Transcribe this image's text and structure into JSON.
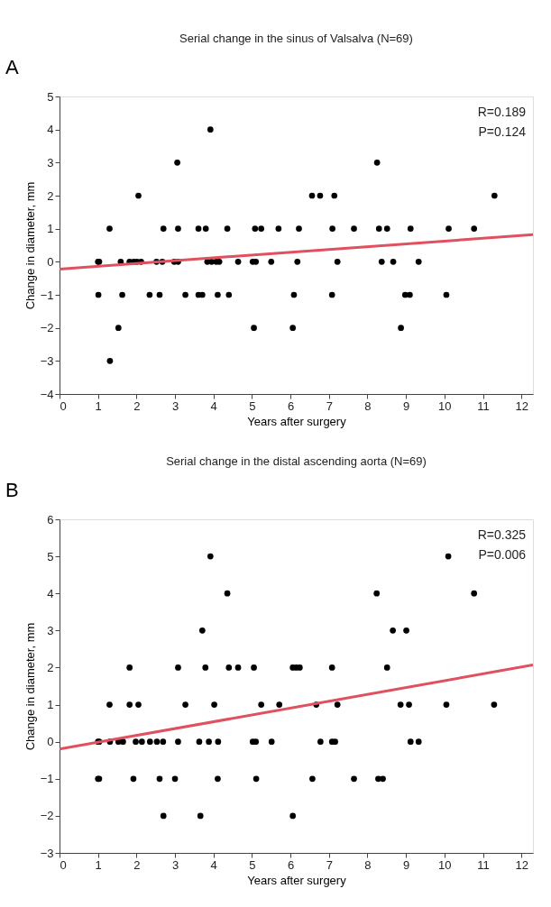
{
  "chart_data": [
    {
      "type": "scatter",
      "title": "Serial change in the sinus of Valsalva (N=69)",
      "xlabel": "Years after surgery",
      "ylabel": "Change in diameter, mm",
      "annotations": [
        "A",
        "R=0.189",
        "P=0.124"
      ],
      "xlim": [
        0,
        12.3
      ],
      "ylim": [
        -4,
        5
      ],
      "xticks": [
        0,
        1,
        2,
        3,
        4,
        5,
        6,
        7,
        8,
        9,
        10,
        11,
        12
      ],
      "yticks": [
        -4,
        -3,
        -2,
        -1,
        0,
        1,
        2,
        3,
        4,
        5
      ],
      "grid": false,
      "series": [
        {
          "marker": "circle",
          "color": "#000000",
          "x": [
            1.0,
            1.03,
            1.59,
            1.82,
            1.93,
            2.01,
            2.12,
            2.52,
            2.67,
            2.98,
            3.08,
            3.84,
            3.95,
            4.07,
            4.15,
            4.64,
            5.02,
            5.1,
            5.5,
            6.18,
            7.22,
            8.37,
            8.67,
            9.33,
            1.3,
            2.7,
            3.08,
            3.61,
            3.8,
            4.36,
            5.08,
            5.24,
            5.69,
            6.22,
            7.09,
            7.65,
            8.3,
            8.51,
            9.12,
            10.11,
            10.77,
            2.05,
            6.56,
            6.77,
            7.14,
            11.3,
            3.06,
            8.25,
            3.92,
            1.01,
            1.63,
            2.34,
            2.6,
            3.27,
            3.61,
            3.71,
            4.11,
            4.4,
            6.09,
            7.08,
            8.98,
            9.1,
            10.05,
            1.53,
            5.05,
            6.06,
            8.87,
            1.31
          ],
          "values": [
            0,
            0,
            0,
            0,
            0,
            0,
            0,
            0,
            0,
            0,
            0,
            0,
            0,
            0,
            0,
            0,
            0,
            0,
            0,
            0,
            0,
            0,
            0,
            0,
            1,
            1,
            1,
            1,
            1,
            1,
            1,
            1,
            1,
            1,
            1,
            1,
            1,
            1,
            1,
            1,
            1,
            2,
            2,
            2,
            2,
            2,
            3,
            3,
            4,
            -1,
            -1,
            -1,
            -1,
            -1,
            -1,
            -1,
            -1,
            -1,
            -1,
            -1,
            -1,
            -1,
            -1,
            -2,
            -2,
            -2,
            -2,
            -3
          ]
        },
        {
          "type": "line",
          "color": "#e0505f",
          "line_style": "solid",
          "x": [
            0,
            12.3
          ],
          "values": [
            -0.22,
            0.82
          ]
        }
      ]
    },
    {
      "type": "scatter",
      "title": "Serial change in the distal ascending aorta (N=69)",
      "xlabel": "Years after surgery",
      "ylabel": "Change in diameter, mm",
      "annotations": [
        "B",
        "R=0.325",
        "P=0.006"
      ],
      "xlim": [
        0,
        12.3
      ],
      "ylim": [
        -3,
        6
      ],
      "xticks": [
        0,
        1,
        2,
        3,
        4,
        5,
        6,
        7,
        8,
        9,
        10,
        11,
        12
      ],
      "yticks": [
        -3,
        -2,
        -1,
        0,
        1,
        2,
        3,
        4,
        5,
        6
      ],
      "grid": false,
      "series": [
        {
          "marker": "circle",
          "color": "#000000",
          "x": [
            1.0,
            1.03,
            1.31,
            1.53,
            1.65,
            1.98,
            2.14,
            2.35,
            2.53,
            2.69,
            3.08,
            3.63,
            3.88,
            4.12,
            5.02,
            5.1,
            5.51,
            6.78,
            7.08,
            7.16,
            9.12,
            9.33,
            1.3,
            1.82,
            2.05,
            3.27,
            4.02,
            5.24,
            5.71,
            6.67,
            7.22,
            8.86,
            9.08,
            10.05,
            11.29,
            1.82,
            3.08,
            3.79,
            4.4,
            4.64,
            5.05,
            6.06,
            6.15,
            6.24,
            7.08,
            8.51,
            3.71,
            8.66,
            9.01,
            4.36,
            8.24,
            10.77,
            3.92,
            10.1,
            1.0,
            1.03,
            1.92,
            2.6,
            3.0,
            4.11,
            5.11,
            6.57,
            7.65,
            8.28,
            8.4,
            2.7,
            3.66,
            6.06
          ],
          "values": [
            0,
            0,
            0,
            0,
            0,
            0,
            0,
            0,
            0,
            0,
            0,
            0,
            0,
            0,
            0,
            0,
            0,
            0,
            0,
            0,
            0,
            0,
            1,
            1,
            1,
            1,
            1,
            1,
            1,
            1,
            1,
            1,
            1,
            1,
            1,
            2,
            2,
            2,
            2,
            2,
            2,
            2,
            2,
            2,
            2,
            2,
            3,
            3,
            3,
            4,
            4,
            4,
            5,
            5,
            -1,
            -1,
            -1,
            -1,
            -1,
            -1,
            -1,
            -1,
            -1,
            -1,
            -1,
            -2,
            -2,
            -2
          ]
        },
        {
          "type": "line",
          "color": "#e0505f",
          "line_style": "solid",
          "x": [
            0,
            12.3
          ],
          "values": [
            -0.2,
            2.07
          ]
        }
      ]
    }
  ]
}
